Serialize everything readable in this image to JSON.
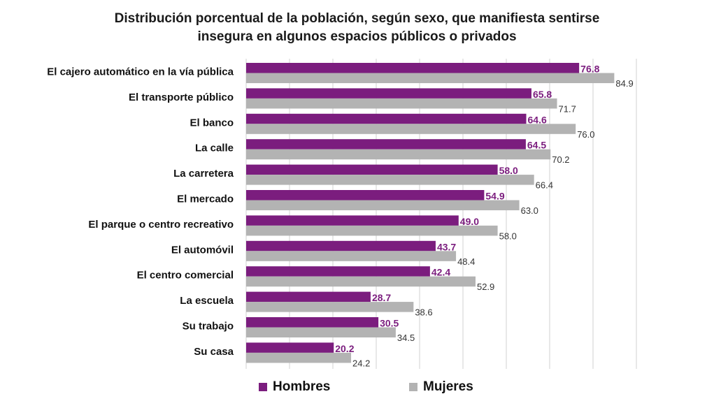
{
  "title_lines": [
    "Distribución porcentual de la población, según sexo, que manifiesta sentirse",
    "insegura en algunos espacios públicos o privados"
  ],
  "colors": {
    "hombres": "#7b1d7e",
    "mujeres": "#b3b3b3",
    "grid": "#d0d0d0"
  },
  "chart_data": {
    "type": "bar",
    "orientation": "horizontal",
    "title": "Distribución porcentual de la población, según sexo, que manifiesta sentirse insegura en algunos espacios públicos o privados",
    "categories": [
      "El cajero automático en la vía pública",
      "El transporte público",
      "El banco",
      "La calle",
      "La carretera",
      "El mercado",
      "El parque o centro recreativo",
      "El automóvil",
      "El centro comercial",
      "La escuela",
      "Su trabajo",
      "Su casa"
    ],
    "series": [
      {
        "name": "Hombres",
        "values": [
          76.8,
          65.8,
          64.6,
          64.5,
          58.0,
          54.9,
          49.0,
          43.7,
          42.4,
          28.7,
          30.5,
          20.2
        ]
      },
      {
        "name": "Mujeres",
        "values": [
          84.9,
          71.7,
          76.0,
          70.2,
          66.4,
          63.0,
          58.0,
          48.4,
          52.9,
          38.6,
          34.5,
          24.2
        ]
      }
    ],
    "xlim": [
      0,
      90
    ],
    "grid": true,
    "legend_position": "bottom",
    "data_labels": true
  }
}
